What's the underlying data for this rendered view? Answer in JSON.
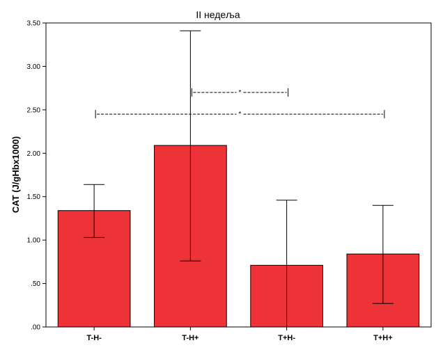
{
  "chart_data": {
    "type": "bar",
    "title": "II недеља",
    "xlabel": "",
    "ylabel": "CAT (J/gHbx1000)",
    "categories": [
      "T-H-",
      "T-H+",
      "T+H-",
      "T+H+"
    ],
    "values": [
      1.34,
      2.09,
      0.71,
      0.84
    ],
    "error_bars": [
      {
        "low": 1.03,
        "high": 1.64
      },
      {
        "low": 0.76,
        "high": 3.41
      },
      {
        "low": 0.0,
        "high": 1.46
      },
      {
        "low": 0.27,
        "high": 1.4
      }
    ],
    "ylim": [
      0,
      3.5
    ],
    "yticks": [
      0,
      0.5,
      1.0,
      1.5,
      2.0,
      2.5,
      3.0,
      3.5
    ],
    "ytick_labels": [
      ".00",
      ".50",
      "1.00",
      "1.50",
      "2.00",
      "2.50",
      "3.00",
      "3.50"
    ],
    "grid": false,
    "bar_color": "#ee3338",
    "annotations": [
      {
        "from": "T-H+",
        "to": "T+H-",
        "label": "*",
        "y": 2.7
      },
      {
        "from": "T-H-",
        "to": "T+H+",
        "label": "*",
        "y": 2.45
      }
    ]
  }
}
